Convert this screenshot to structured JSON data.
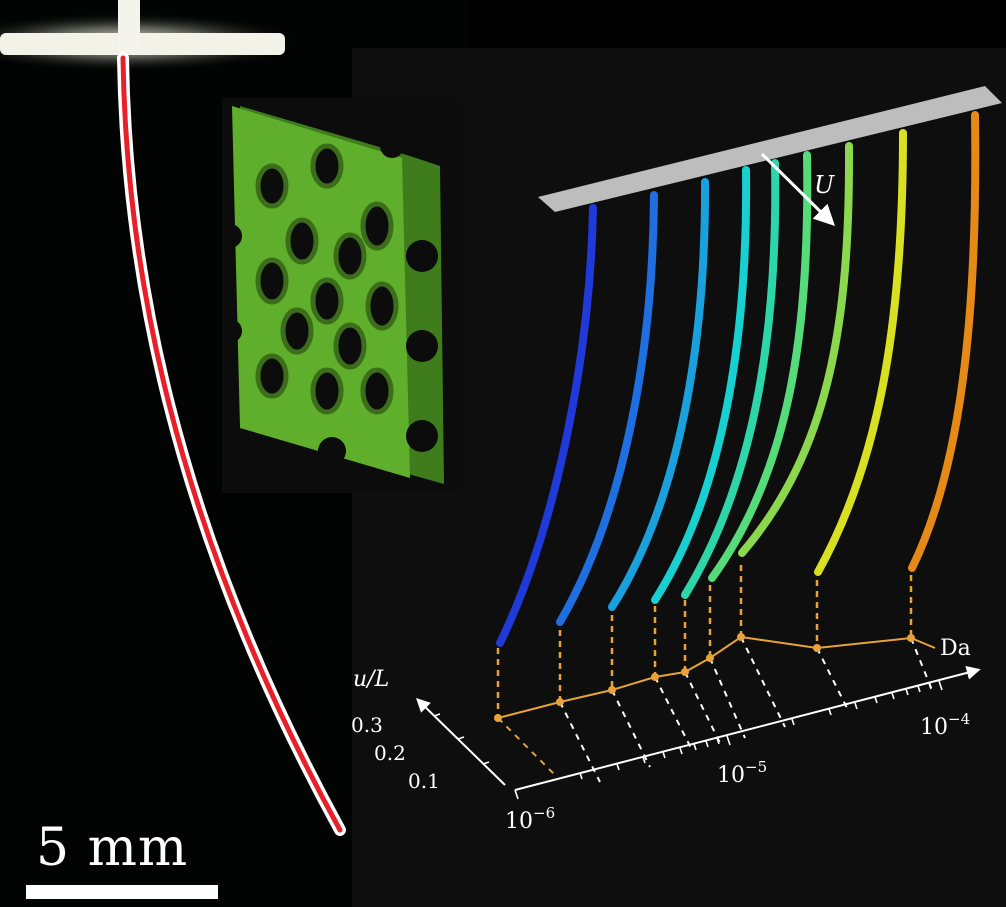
{
  "scale_bar": {
    "label": "5 mm"
  },
  "flow": {
    "label": "U"
  },
  "axes": {
    "x_label": "Da",
    "y_label": "u/L",
    "y_ticks": [
      "0.3",
      "0.2",
      "0.1"
    ],
    "x_ticks": [
      {
        "base": "10",
        "exp": "−6"
      },
      {
        "base": "10",
        "exp": "−5"
      },
      {
        "base": "10",
        "exp": "−4"
      }
    ]
  },
  "colors": {
    "fiber_core": "#e8202a",
    "fiber_edge": "#ffffff",
    "plate": "#5fae2c",
    "support": "#bdbdbd",
    "trend": "#e8a23a",
    "fiber_series": [
      "#1f3ad8",
      "#1f6fe0",
      "#1aa0dc",
      "#18d0cf",
      "#2cd6a8",
      "#55db7a",
      "#8bd84e",
      "#d8e021",
      "#e58a17"
    ]
  }
}
